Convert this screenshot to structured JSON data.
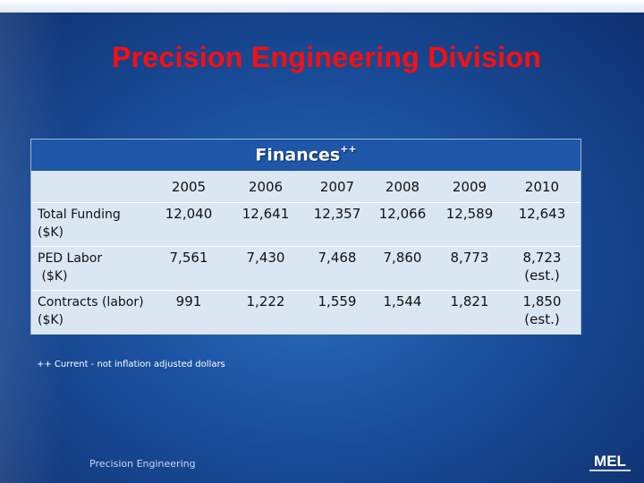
{
  "slide": {
    "title": "Precision Engineering Division",
    "footer": "Precision Engineering",
    "footnote": "++ Current - not inflation adjusted dollars",
    "logo_text": "MEL"
  },
  "table": {
    "title": "Finances",
    "title_sup": "++",
    "years": [
      "2005",
      "2006",
      "2007",
      "2008",
      "2009",
      "2010"
    ],
    "rows": [
      {
        "label": [
          "Total Funding",
          "($K)"
        ],
        "values": [
          "12,040",
          "12,641",
          "12,357",
          "12,066",
          "12,589",
          "12,643"
        ],
        "notes": [
          "",
          "",
          "",
          "",
          "",
          ""
        ]
      },
      {
        "label": [
          "PED Labor",
          " ($K)"
        ],
        "values": [
          "7,561",
          "7,430",
          "7,468",
          "7,860",
          "8,773",
          "8,723"
        ],
        "notes": [
          "",
          "",
          "",
          "",
          "",
          "(est.)"
        ]
      },
      {
        "label": [
          "Contracts (labor)",
          "($K)"
        ],
        "values": [
          "991",
          "1,222",
          "1,559",
          "1,544",
          "1,821",
          "1,850"
        ],
        "notes": [
          "",
          "",
          "",
          "",
          "",
          "(est.)"
        ]
      }
    ]
  },
  "colors": {
    "title": "#ff0d0d",
    "table_header_bg": "#1e56a8",
    "table_body_bg": "#dbe6f3"
  }
}
